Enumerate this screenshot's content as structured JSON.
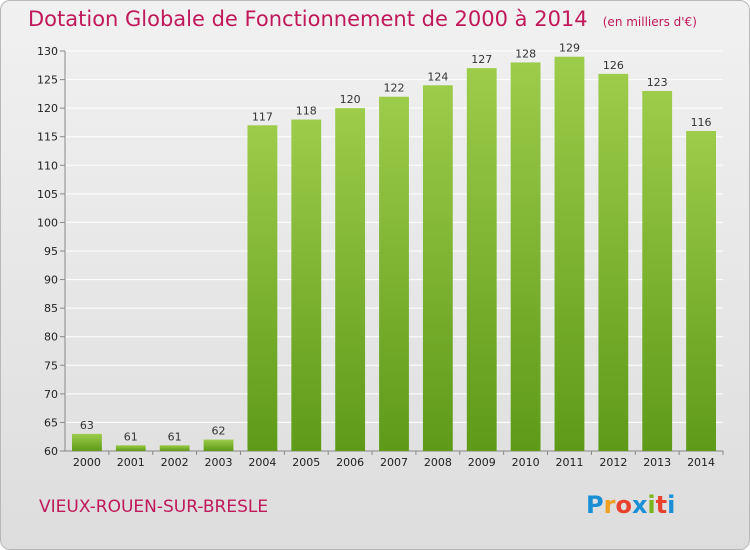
{
  "header": {
    "title": "Dotation Globale de Fonctionnement de 2000 à 2014",
    "unit": "(en milliers d'€)"
  },
  "commune": "VIEUX-ROUEN-SUR-BRESLE",
  "logo": {
    "letters": [
      "P",
      "r",
      "o",
      "x",
      "i",
      "t",
      "i"
    ],
    "colors": [
      "#1a8fd6",
      "#f0a020",
      "#e8422e",
      "#1a8fd6",
      "#7ab51d",
      "#e8422e",
      "#1a8fd6"
    ]
  },
  "colors": {
    "bar_top": "#9ccc4a",
    "bar_bottom": "#5e9a18",
    "grid": "#ffffff",
    "axis": "#888888",
    "accent": "#c0185a"
  },
  "chart_data": {
    "type": "bar",
    "categories": [
      "2000",
      "2001",
      "2002",
      "2003",
      "2004",
      "2005",
      "2006",
      "2007",
      "2008",
      "2009",
      "2010",
      "2011",
      "2012",
      "2013",
      "2014"
    ],
    "values": [
      63,
      61,
      61,
      62,
      117,
      118,
      120,
      122,
      124,
      127,
      128,
      129,
      126,
      123,
      116
    ],
    "ylim": [
      60,
      130
    ],
    "yticks": [
      60,
      65,
      70,
      75,
      80,
      85,
      90,
      95,
      100,
      105,
      110,
      115,
      120,
      125,
      130
    ],
    "grid": true,
    "data_labels": true
  }
}
